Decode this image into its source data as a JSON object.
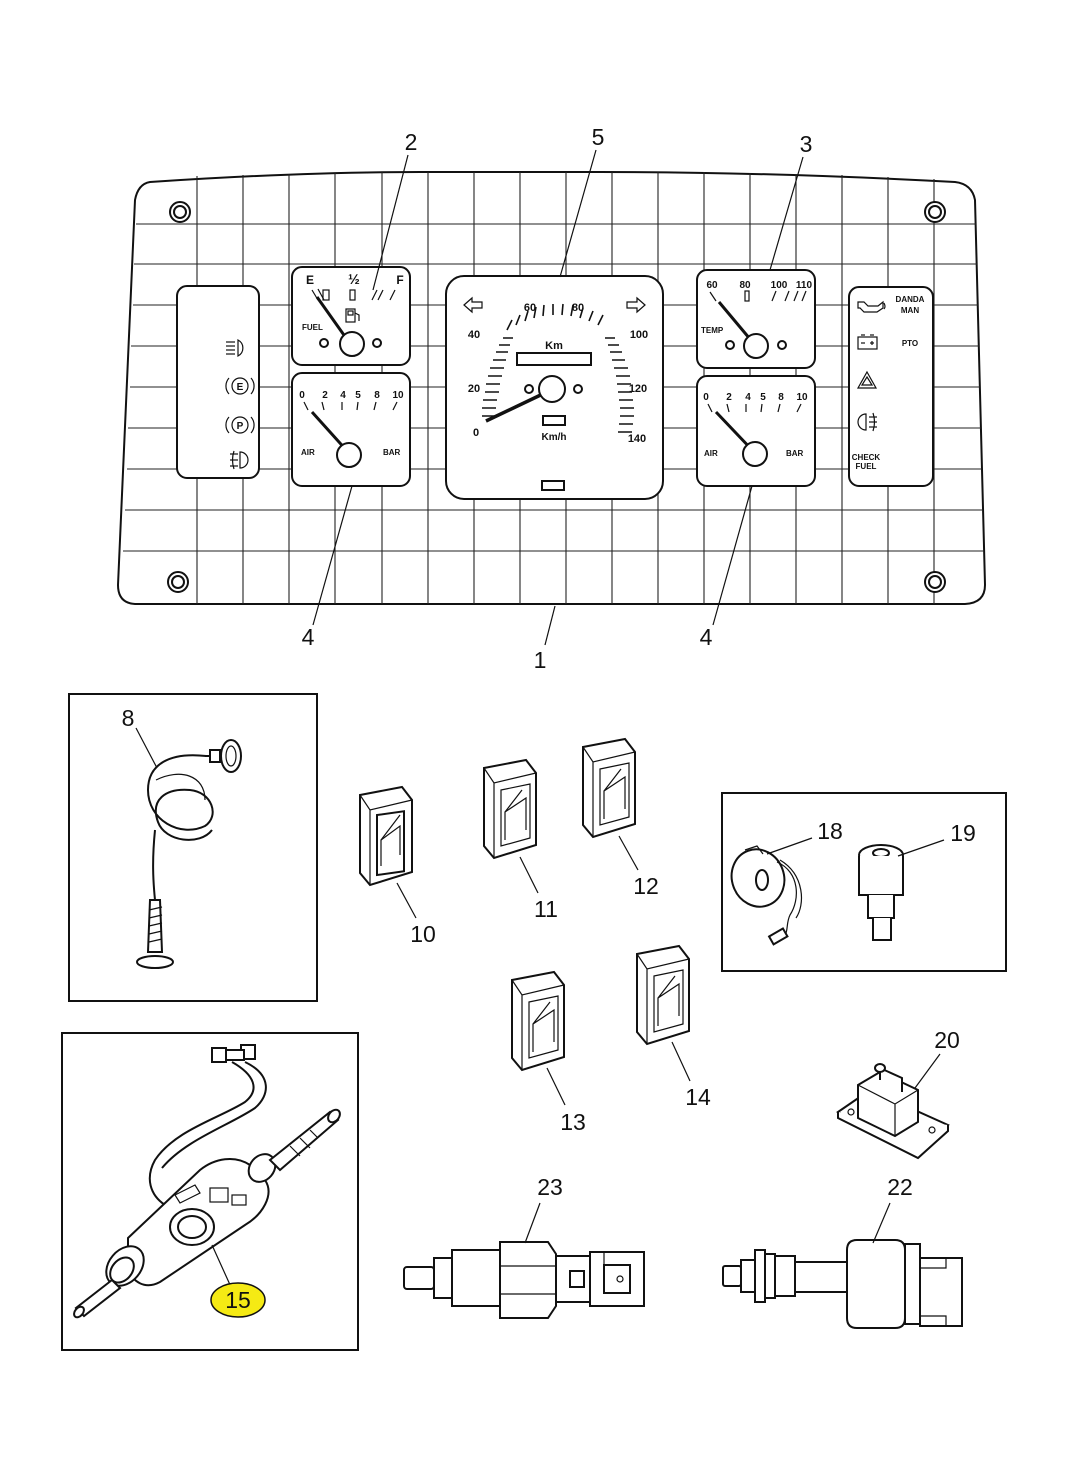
{
  "callouts": {
    "c1": "1",
    "c2": "2",
    "c3": "3",
    "c4a": "4",
    "c4b": "4",
    "c5": "5",
    "c8": "8",
    "c10": "10",
    "c11": "11",
    "c12": "12",
    "c13": "13",
    "c14": "14",
    "c15": "15",
    "c18": "18",
    "c19": "19",
    "c20": "20",
    "c22": "22",
    "c23": "23"
  },
  "fuel_gauge": {
    "e": "E",
    "half": "½",
    "f": "F",
    "label": "FUEL"
  },
  "temp_gauge": {
    "t60": "60",
    "t80": "80",
    "t100": "100",
    "t110": "110",
    "label": "TEMP"
  },
  "air_gauge": {
    "t0": "0",
    "t2": "2",
    "t4": "4",
    "t5": "5",
    "t8": "8",
    "t10": "10",
    "left": "AIR",
    "right": "BAR"
  },
  "speedo": {
    "s0": "0",
    "s20": "20",
    "s40": "40",
    "s60": "60",
    "s80": "80",
    "s100": "100",
    "s120": "120",
    "s140": "140",
    "km": "Km",
    "kmh": "Km/h"
  },
  "right_panel": {
    "danda": "DANDA",
    "man": "MAN",
    "pto": "PTO",
    "check": "CHECK",
    "fuel": "FUEL"
  },
  "icons": {
    "left_panel": [
      "headlight-icon",
      "exhaust-brake-icon",
      "parking-brake-icon",
      "rear-fog-icon"
    ],
    "right_panel": [
      "oil-pressure-icon",
      "battery-icon",
      "warning-triangle-icon",
      "front-fog-icon"
    ],
    "highlight_color": "#f5ea14"
  }
}
